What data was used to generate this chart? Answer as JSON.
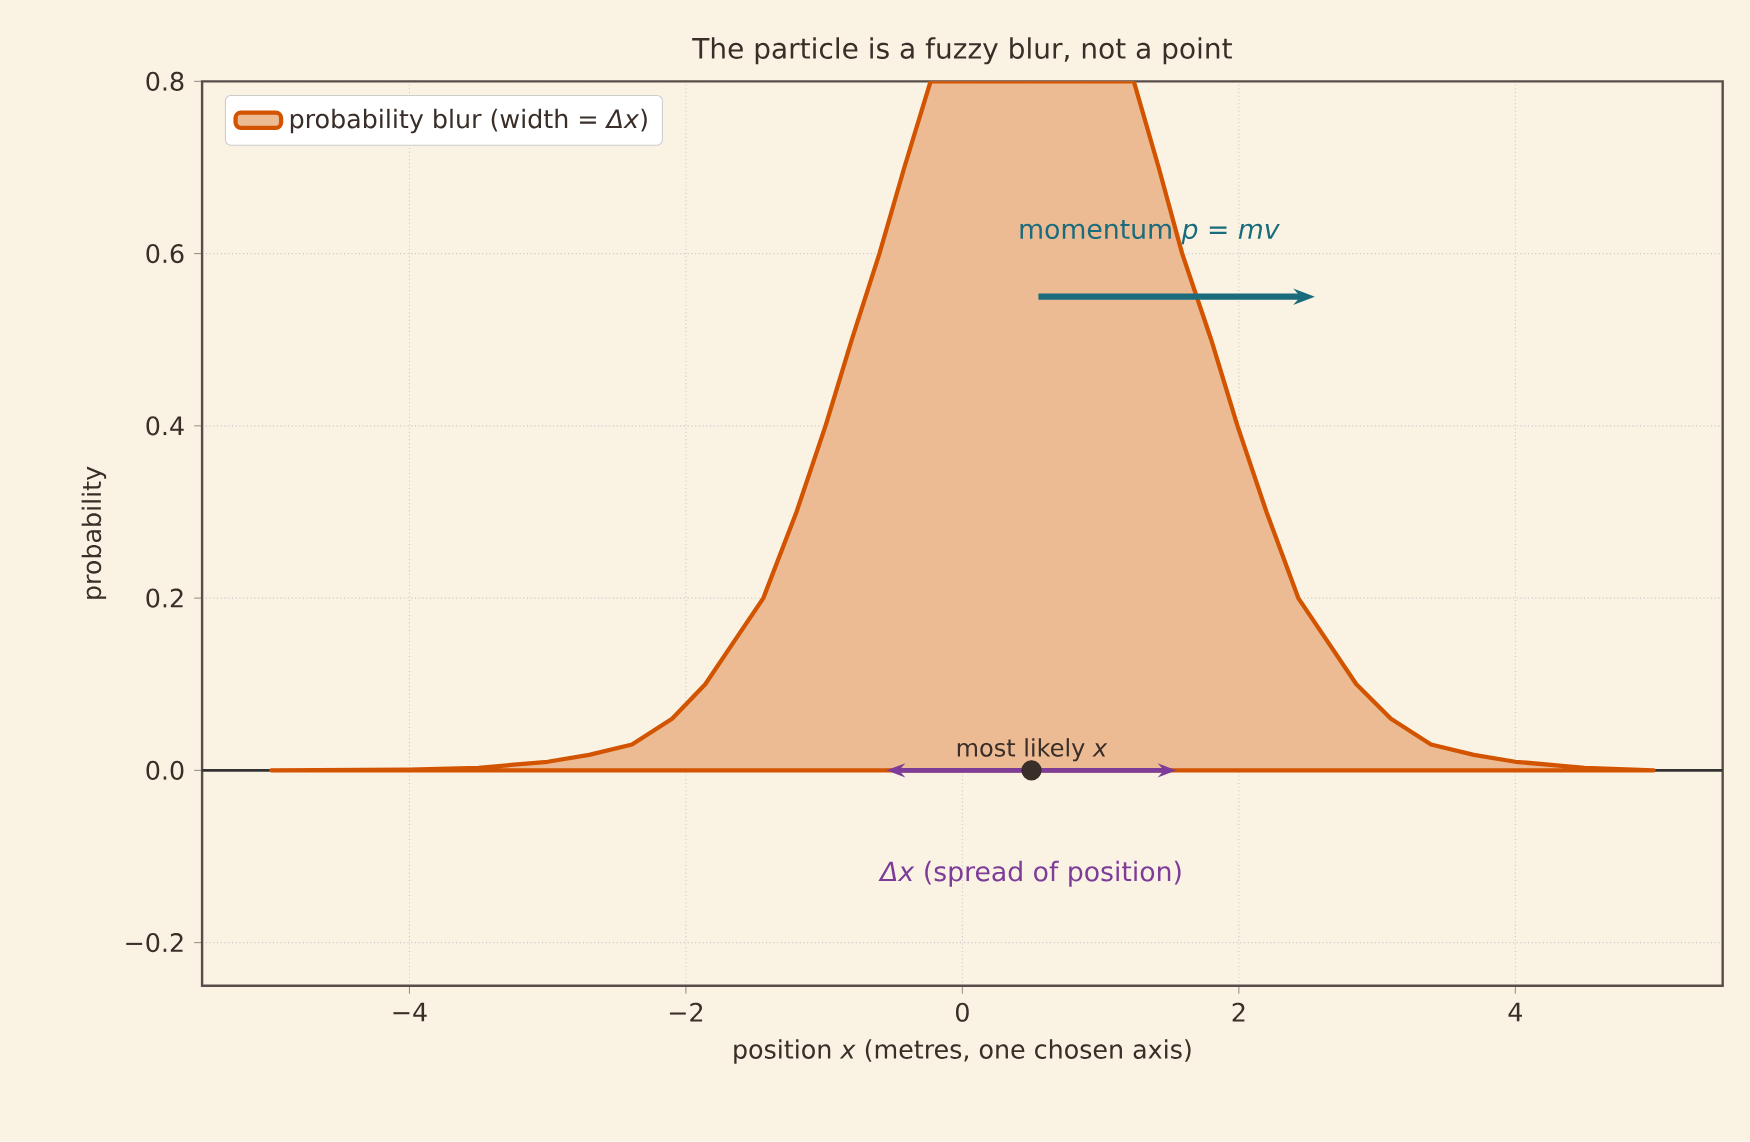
{
  "chart_data": {
    "type": "area",
    "title": "The particle is a fuzzy blur, not a point",
    "xlabel": "position *x*  (metres, one chosen axis)",
    "ylabel": "probability",
    "series": [
      {
        "name": "probability blur (width = *Δx*)",
        "color": "#d35400",
        "x": [
          -5,
          -4,
          -3.5,
          -3,
          -2.7,
          -2.39,
          -2.1,
          -1.86,
          -1.65,
          -1.44,
          -1.2,
          -0.99,
          -0.8,
          -0.6,
          -0.42,
          -0.23,
          1.24,
          1.42,
          1.59,
          1.8,
          1.99,
          2.2,
          2.43,
          2.64,
          2.85,
          3.1,
          3.39,
          3.7,
          4,
          4.5,
          5
        ],
        "values": [
          0,
          0.001,
          0.003,
          0.01,
          0.018,
          0.03,
          0.06,
          0.1,
          0.15,
          0.2,
          0.3,
          0.4,
          0.5,
          0.6,
          0.7,
          0.8,
          0.8,
          0.7,
          0.6,
          0.5,
          0.4,
          0.3,
          0.2,
          0.15,
          0.1,
          0.06,
          0.03,
          0.018,
          0.01,
          0.003,
          0
        ]
      },
      {
        "type": "scatter",
        "color": "#3a2e28",
        "marker": "circle",
        "x": [
          0.5
        ],
        "values": [
          0
        ]
      }
    ],
    "xlim": [
      -5.5,
      5.5
    ],
    "ylim": [
      -0.25,
      0.8
    ],
    "xticks": [
      {
        "value": -4,
        "label": "−4"
      },
      {
        "value": -2,
        "label": "−2"
      },
      0,
      2,
      4
    ],
    "yticks": [
      {
        "value": -0.2,
        "label": "−0.2"
      },
      {
        "value": 0,
        "label": "0.0"
      },
      {
        "value": 0.2,
        "label": "0.2"
      },
      {
        "value": 0.4,
        "label": "0.4"
      },
      {
        "value": 0.6,
        "label": "0.6"
      },
      {
        "value": 0.8,
        "label": "0.8"
      }
    ],
    "ref_lines": [
      {
        "axis": "y",
        "value": 0,
        "color": "#333333"
      }
    ],
    "annotations": [
      {
        "text": "most likely *x*",
        "x": 0.5,
        "y": 0
      },
      {
        "text": "momentum *p* = *mv*"
      },
      {
        "text": "*Δx* (spread of position)"
      }
    ],
    "grid": true,
    "legend": "top left"
  }
}
